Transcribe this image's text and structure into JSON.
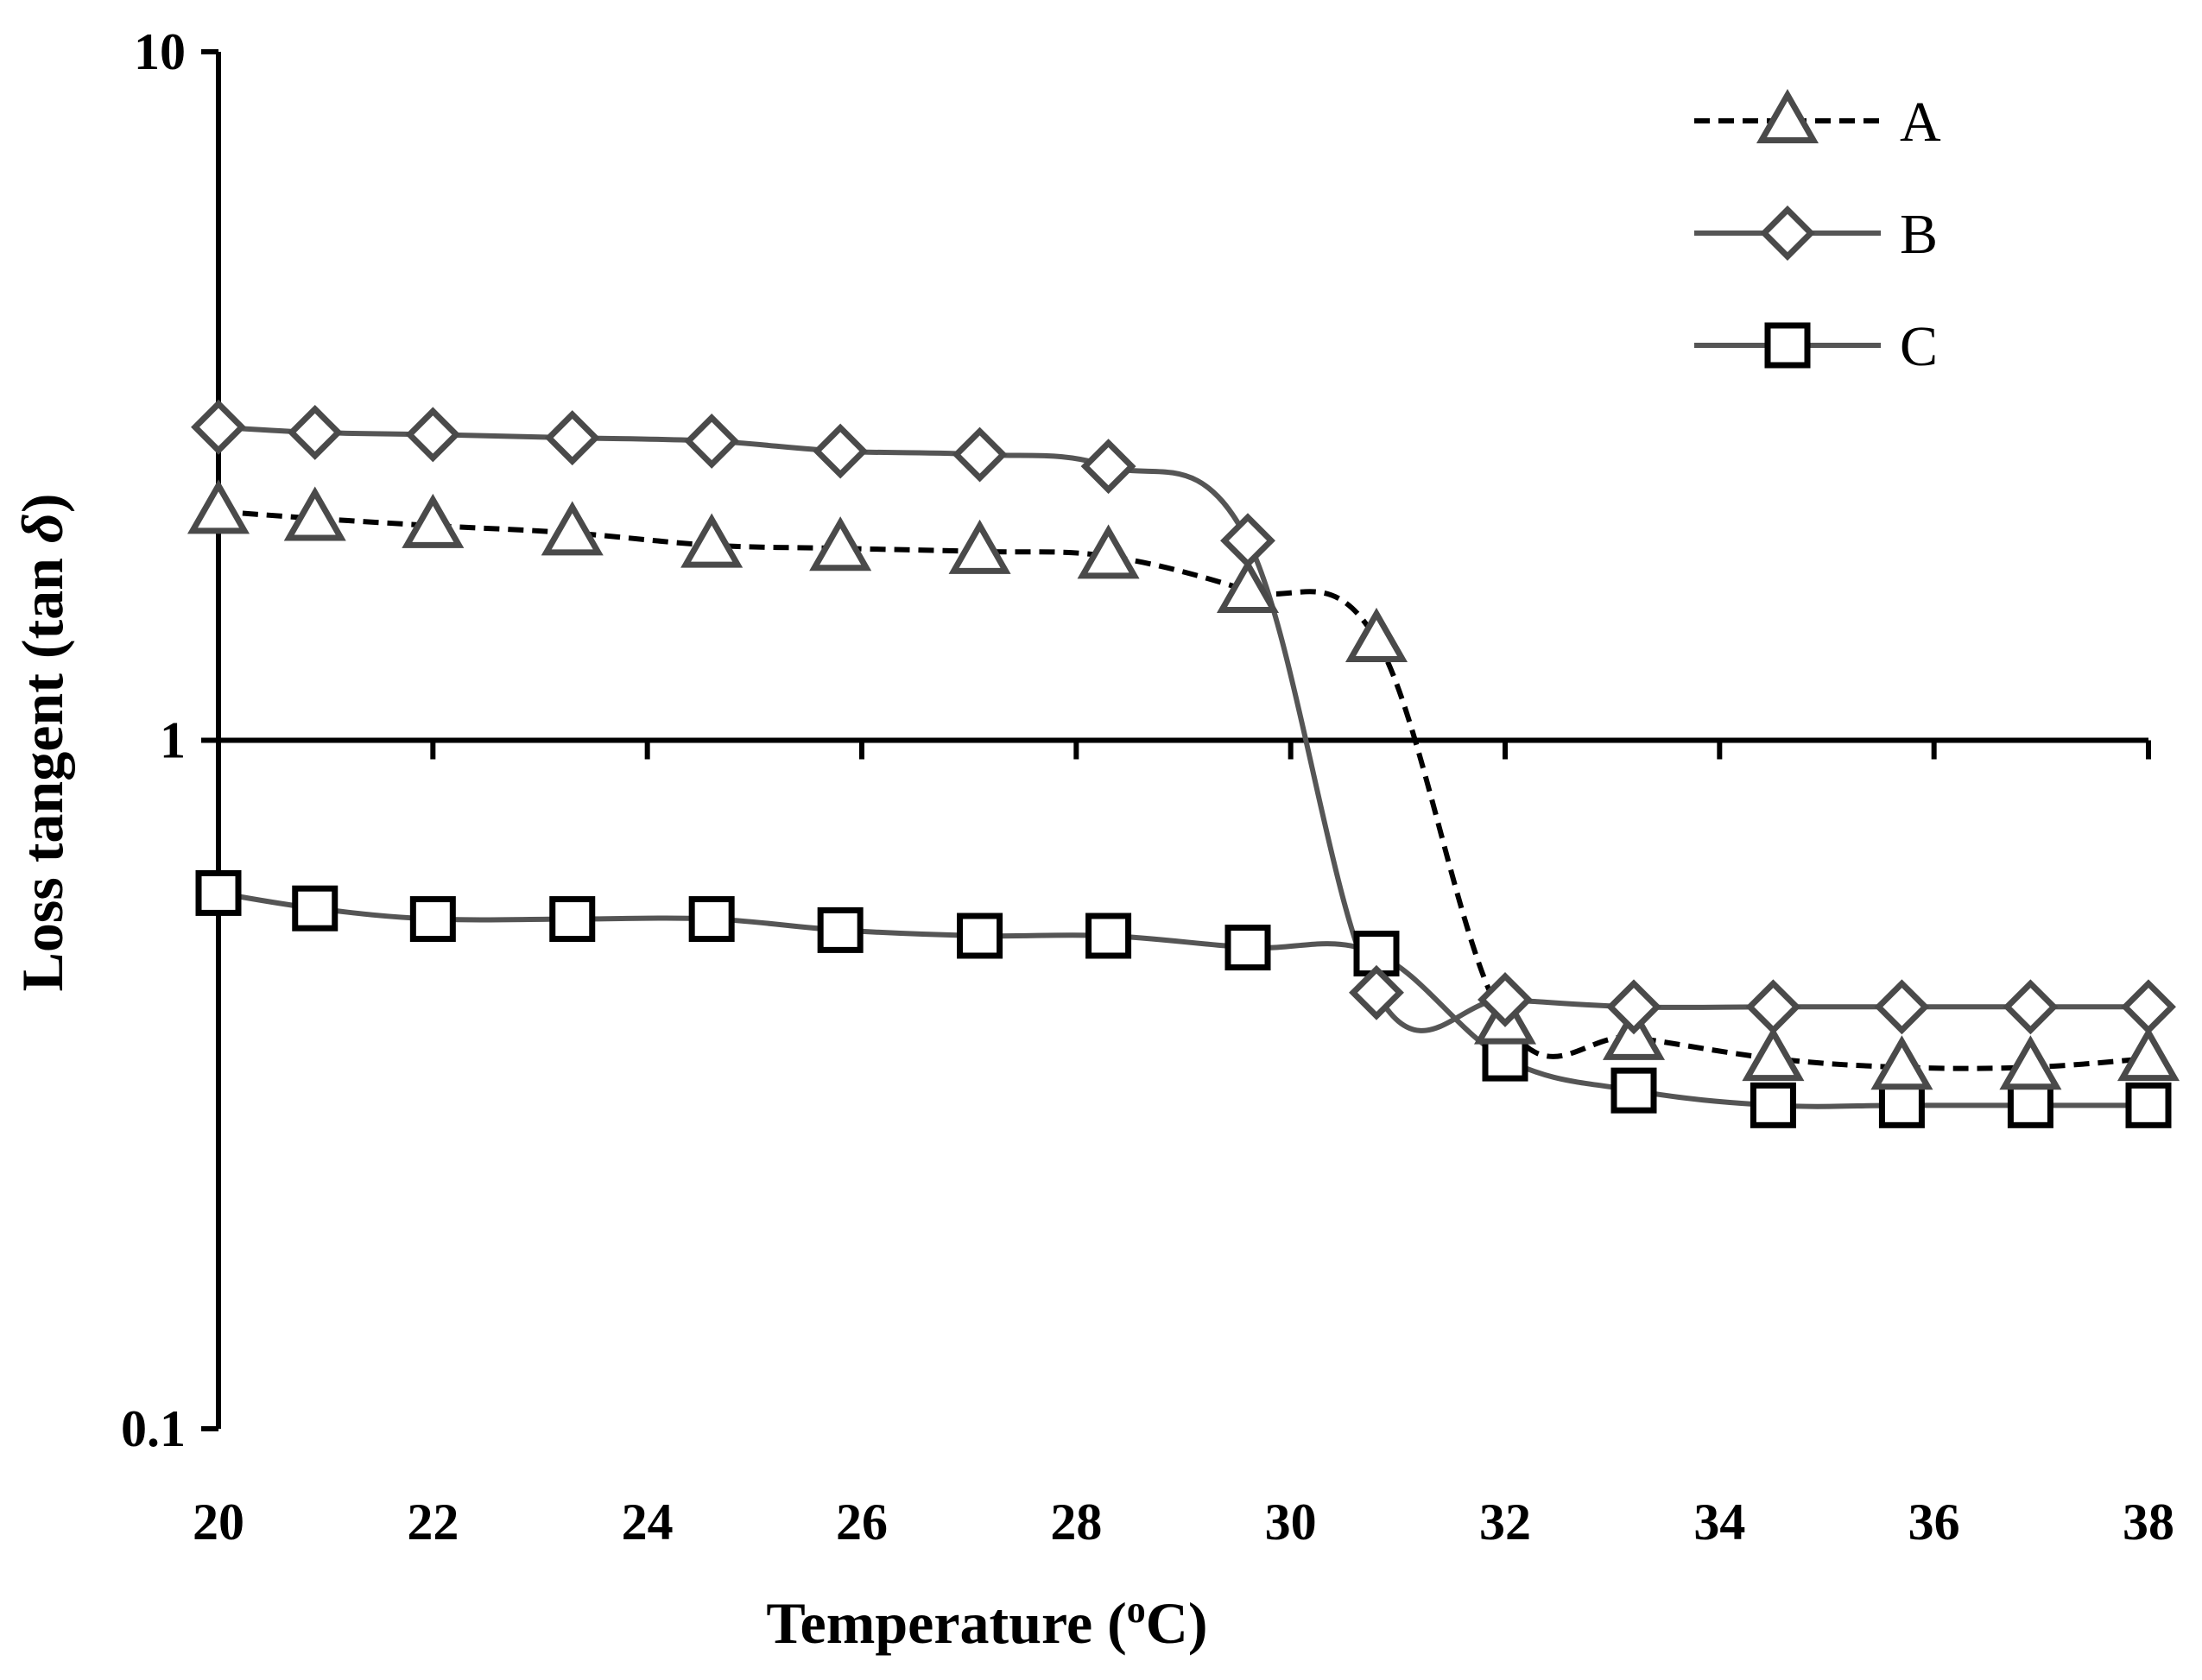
{
  "chart_data": {
    "type": "line",
    "title": "",
    "xlabel": "Temperature (",
    "xlabel_sup": "o",
    "xlabel_unit": "C)",
    "ylabel": "Loss tangent (tan ",
    "ylabel_symbol": "δ",
    "ylabel_end": ")",
    "y_scale": "log",
    "xlim": [
      20,
      38
    ],
    "ylim": [
      0.1,
      10
    ],
    "x_ticks": [
      20,
      22,
      24,
      26,
      28,
      30,
      32,
      34,
      36,
      38
    ],
    "x_tick_labels": [
      "20",
      "22",
      "24",
      "26",
      "28",
      "30",
      "32",
      "34",
      "36",
      "38"
    ],
    "y_ticks": [
      0.1,
      1,
      10
    ],
    "y_tick_labels": [
      "0.1",
      "1",
      "10"
    ],
    "legend_position": "top-right",
    "x": [
      20,
      20.9,
      22,
      23.3,
      24.6,
      25.8,
      27.1,
      28.3,
      29.6,
      30.8,
      32,
      33.2,
      34.5,
      35.7,
      36.9,
      38
    ],
    "series": [
      {
        "name": "A",
        "line_style": "dashed",
        "line_color": "#000000",
        "marker": "triangle",
        "marker_color": "#4a4a4a",
        "values": [
          2.15,
          2.1,
          2.05,
          2.0,
          1.92,
          1.9,
          1.88,
          1.85,
          1.65,
          1.4,
          0.39,
          0.37,
          0.345,
          0.335,
          0.335,
          0.345
        ]
      },
      {
        "name": "B",
        "line_style": "solid",
        "line_color": "#555555",
        "marker": "diamond",
        "marker_color": "#4a4a4a",
        "values": [
          2.85,
          2.8,
          2.78,
          2.75,
          2.72,
          2.63,
          2.6,
          2.5,
          1.95,
          0.43,
          0.42,
          0.41,
          0.41,
          0.41,
          0.41,
          0.41
        ]
      },
      {
        "name": "C",
        "line_style": "solid",
        "line_color": "#555555",
        "marker": "square",
        "marker_color": "#000000",
        "values": [
          0.6,
          0.57,
          0.55,
          0.55,
          0.55,
          0.53,
          0.52,
          0.52,
          0.5,
          0.49,
          0.345,
          0.31,
          0.295,
          0.295,
          0.295,
          0.295
        ]
      }
    ]
  }
}
